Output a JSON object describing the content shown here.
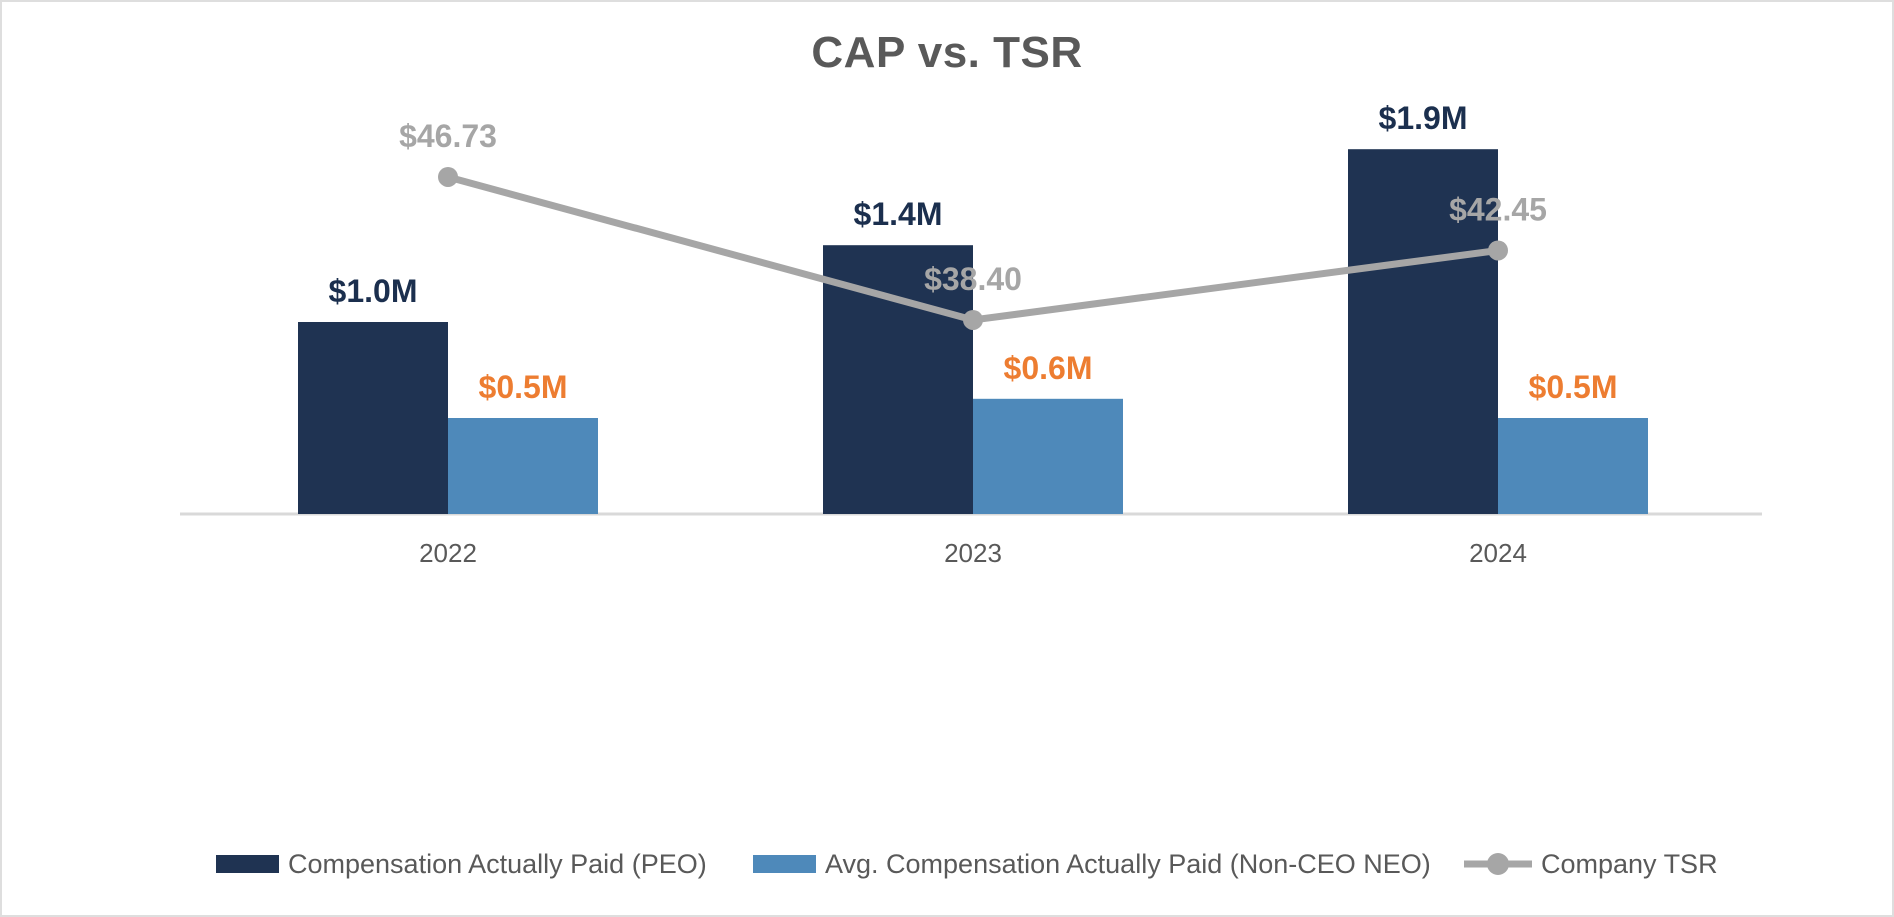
{
  "title": "CAP vs. TSR",
  "chart_data": {
    "type": "bar+line combo",
    "title": "CAP vs. TSR",
    "categories": [
      "2022",
      "2023",
      "2024"
    ],
    "series": [
      {
        "name": "Compensation Actually Paid (PEO)",
        "type": "bar",
        "color": "#1F3352",
        "values": [
          1.0,
          1.4,
          1.9
        ],
        "value_unit": "millions USD",
        "labels": [
          "$1.0M",
          "$1.4M",
          "$1.9M"
        ],
        "label_color": "#1B2F4E"
      },
      {
        "name": "Avg. Compensation Actually Paid (Non-CEO NEO)",
        "type": "bar",
        "color": "#4E89BA",
        "values": [
          0.5,
          0.6,
          0.5
        ],
        "value_unit": "millions USD",
        "labels": [
          "$0.5M",
          "$0.6M",
          "$0.5M"
        ],
        "label_color": "#ED7D31"
      },
      {
        "name": "Company TSR",
        "type": "line",
        "color": "#A6A6A6",
        "values": [
          46.73,
          38.4,
          42.45
        ],
        "value_unit": "USD",
        "labels": [
          "$46.73",
          "$38.40",
          "$42.45"
        ],
        "label_color": "#A6A6A6"
      }
    ],
    "layout_hints": {
      "legend_position": "bottom",
      "grid": false,
      "y_axis_labels": false,
      "x_axis_line_color": "#D9D9D9",
      "x_tick_label_color": "#595959"
    }
  },
  "legend": {
    "items": [
      {
        "label": "Compensation Actually Paid (PEO)",
        "swatch": "navy-bar",
        "color": "#1F3352"
      },
      {
        "label": "Avg. Compensation Actually Paid (Non-CEO NEO)",
        "swatch": "blue-bar",
        "color": "#4E89BA"
      },
      {
        "label": "Company TSR",
        "swatch": "gray-line-marker",
        "color": "#A6A6A6"
      }
    ]
  }
}
